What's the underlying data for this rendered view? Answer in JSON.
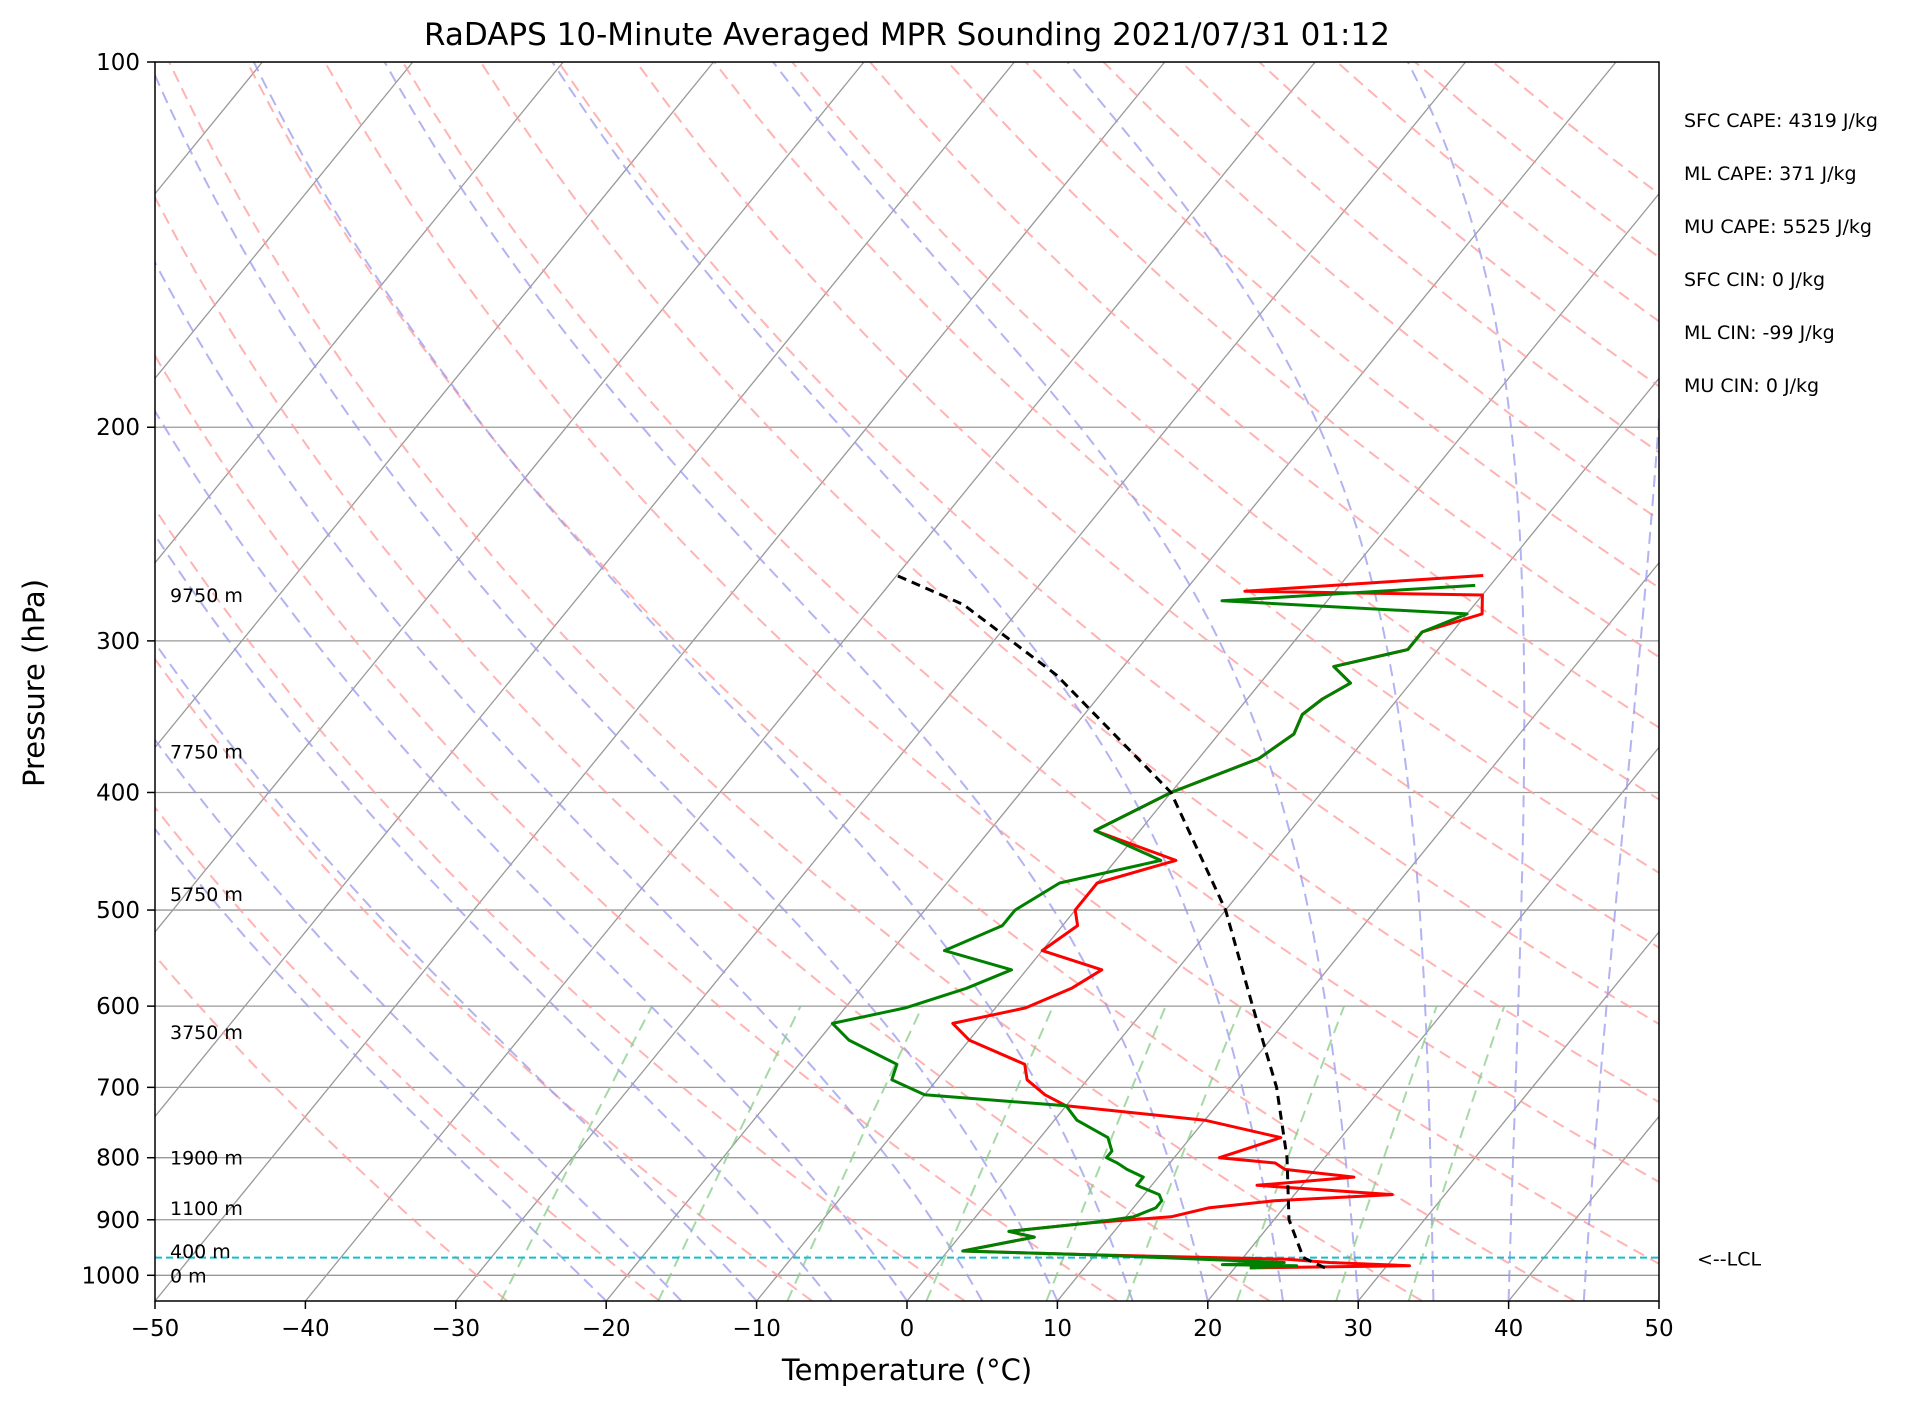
{
  "chart_data": {
    "type": "line",
    "title": "RaDAPS 10-Minute Averaged MPR Sounding 2021/07/31 01:12",
    "xlabel": "Temperature (°C)",
    "ylabel": "Pressure (hPa)",
    "xlim": [
      -50,
      50
    ],
    "ylim": [
      1050,
      100
    ],
    "y_scale": "log",
    "x_ticks": [
      -50,
      -40,
      -30,
      -20,
      -10,
      0,
      10,
      20,
      30,
      40,
      50
    ],
    "x_tick_labels": [
      "−50",
      "−40",
      "−30",
      "−20",
      "−10",
      "0",
      "10",
      "20",
      "30",
      "40",
      "50"
    ],
    "y_ticks": [
      100,
      200,
      300,
      400,
      500,
      600,
      700,
      800,
      900,
      1000
    ],
    "y_tick_labels": [
      "100",
      "200",
      "300",
      "400",
      "500",
      "600",
      "700",
      "800",
      "900",
      "1000"
    ],
    "grid": true,
    "skew": "skew-T log-p",
    "height_labels": [
      {
        "label": "0 m",
        "pressure": 1000
      },
      {
        "label": "400 m",
        "pressure": 955
      },
      {
        "label": "1100 m",
        "pressure": 880
      },
      {
        "label": "1900 m",
        "pressure": 800
      },
      {
        "label": "3750 m",
        "pressure": 630
      },
      {
        "label": "5750 m",
        "pressure": 485
      },
      {
        "label": "7750 m",
        "pressure": 370
      },
      {
        "label": "9750 m",
        "pressure": 275
      }
    ],
    "indices": [
      "SFC CAPE: 4319 J/kg",
      "ML CAPE: 371 J/kg",
      "MU CAPE: 5525 J/kg",
      "SFC CIN: 0 J/kg",
      "ML CIN: -99 J/kg",
      "MU CIN: 0 J/kg"
    ],
    "lcl": {
      "label": "<--LCL",
      "pressure": 967
    },
    "colors": {
      "temperature": "#ff0000",
      "dewpoint": "#008000",
      "parcel": "#000000",
      "lcl_line": "#17becf",
      "isotherm": "#999999",
      "dry_adiabat": "#ff9999",
      "moist_adiabat": "#9999ee",
      "mixing_ratio": "#88cc88"
    },
    "series": [
      {
        "points": [
          {
            "t": 21.0,
            "p": 986
          },
          {
            "t": 31.5,
            "p": 982
          },
          {
            "t": 26.0,
            "p": 976
          },
          {
            "t": 23.0,
            "p": 970
          },
          {
            "t": 10.0,
            "p": 962
          },
          {
            "t": 1.0,
            "p": 955
          },
          {
            "t": 5.0,
            "p": 930
          },
          {
            "t": 3.0,
            "p": 920
          },
          {
            "t": 8.0,
            "p": 905
          },
          {
            "t": 13.0,
            "p": 895
          },
          {
            "t": 15.0,
            "p": 880
          },
          {
            "t": 19.0,
            "p": 868
          },
          {
            "t": 26.5,
            "p": 858
          },
          {
            "t": 17.0,
            "p": 843
          },
          {
            "t": 23.0,
            "p": 830
          },
          {
            "t": 18.0,
            "p": 818
          },
          {
            "t": 17.0,
            "p": 808
          },
          {
            "t": 13.0,
            "p": 800
          },
          {
            "t": 14.0,
            "p": 790
          },
          {
            "t": 16.0,
            "p": 770
          },
          {
            "t": 10.0,
            "p": 745
          },
          {
            "t": 0.0,
            "p": 725
          },
          {
            "t": -2.0,
            "p": 710
          },
          {
            "t": -4.0,
            "p": 690
          },
          {
            "t": -5.0,
            "p": 670
          },
          {
            "t": -10.0,
            "p": 640
          },
          {
            "t": -12.0,
            "p": 620
          },
          {
            "t": -8.0,
            "p": 602
          },
          {
            "t": -6.0,
            "p": 580
          },
          {
            "t": -5.0,
            "p": 560
          },
          {
            "t": -10.0,
            "p": 540
          },
          {
            "t": -9.0,
            "p": 515
          },
          {
            "t": -10.0,
            "p": 500
          },
          {
            "t": -10.0,
            "p": 475
          },
          {
            "t": -6.0,
            "p": 455
          },
          {
            "t": -13.0,
            "p": 430
          },
          {
            "t": -10.0,
            "p": 400
          },
          {
            "t": -6.0,
            "p": 375
          },
          {
            "t": -5.0,
            "p": 358
          },
          {
            "t": -5.5,
            "p": 345
          },
          {
            "t": -5.0,
            "p": 335
          },
          {
            "t": -4.0,
            "p": 325
          },
          {
            "t": -6.0,
            "p": 315
          },
          {
            "t": -2.0,
            "p": 305
          },
          {
            "t": -2.0,
            "p": 295
          },
          {
            "t": 1.0,
            "p": 285
          },
          {
            "t": 0.0,
            "p": 275
          },
          {
            "t": -16.0,
            "p": 273
          },
          {
            "t": -1.0,
            "p": 265
          }
        ]
      },
      {
        "points": [
          {
            "t": 21.0,
            "p": 986
          },
          {
            "t": 24.0,
            "p": 982
          },
          {
            "t": 19.0,
            "p": 980
          },
          {
            "t": 23.0,
            "p": 976
          },
          {
            "t": 10.0,
            "p": 962
          },
          {
            "t": 1.0,
            "p": 955
          },
          {
            "t": 5.0,
            "p": 930
          },
          {
            "t": 3.0,
            "p": 920
          },
          {
            "t": 8.0,
            "p": 905
          },
          {
            "t": 10.5,
            "p": 895
          },
          {
            "t": 11.5,
            "p": 880
          },
          {
            "t": 11.5,
            "p": 868
          },
          {
            "t": 11.0,
            "p": 858
          },
          {
            "t": 9.0,
            "p": 843
          },
          {
            "t": 9.0,
            "p": 830
          },
          {
            "t": 7.5,
            "p": 818
          },
          {
            "t": 6.5,
            "p": 808
          },
          {
            "t": 5.5,
            "p": 800
          },
          {
            "t": 5.5,
            "p": 790
          },
          {
            "t": 4.5,
            "p": 770
          },
          {
            "t": 1.5,
            "p": 745
          },
          {
            "t": 0.0,
            "p": 725
          },
          {
            "t": -10.0,
            "p": 710
          },
          {
            "t": -13.0,
            "p": 690
          },
          {
            "t": -13.5,
            "p": 670
          },
          {
            "t": -18.0,
            "p": 640
          },
          {
            "t": -20.0,
            "p": 620
          },
          {
            "t": -16.0,
            "p": 602
          },
          {
            "t": -13.0,
            "p": 580
          },
          {
            "t": -11.0,
            "p": 560
          },
          {
            "t": -16.5,
            "p": 540
          },
          {
            "t": -14.0,
            "p": 515
          },
          {
            "t": -14.0,
            "p": 500
          },
          {
            "t": -12.5,
            "p": 475
          },
          {
            "t": -7.0,
            "p": 455
          },
          {
            "t": -13.0,
            "p": 430
          },
          {
            "t": -10.0,
            "p": 400
          },
          {
            "t": -6.0,
            "p": 375
          },
          {
            "t": -5.0,
            "p": 358
          },
          {
            "t": -5.5,
            "p": 345
          },
          {
            "t": -5.0,
            "p": 335
          },
          {
            "t": -4.0,
            "p": 325
          },
          {
            "t": -6.0,
            "p": 315
          },
          {
            "t": -2.0,
            "p": 305
          },
          {
            "t": -2.0,
            "p": 295
          },
          {
            "t": 0.0,
            "p": 285
          },
          {
            "t": -17.0,
            "p": 278
          },
          {
            "t": -1.0,
            "p": 270
          }
        ]
      },
      {
        "points": [
          {
            "t": 26.0,
            "p": 986
          },
          {
            "t": 24.0,
            "p": 967
          },
          {
            "t": 21.0,
            "p": 900
          },
          {
            "t": 17.5,
            "p": 800
          },
          {
            "t": 13.0,
            "p": 700
          },
          {
            "t": 7.0,
            "p": 600
          },
          {
            "t": 0.0,
            "p": 500
          },
          {
            "t": -10.0,
            "p": 400
          },
          {
            "t": -24.0,
            "p": 320
          },
          {
            "t": -34.0,
            "p": 280
          },
          {
            "t": -40.0,
            "p": 265
          }
        ]
      }
    ]
  }
}
